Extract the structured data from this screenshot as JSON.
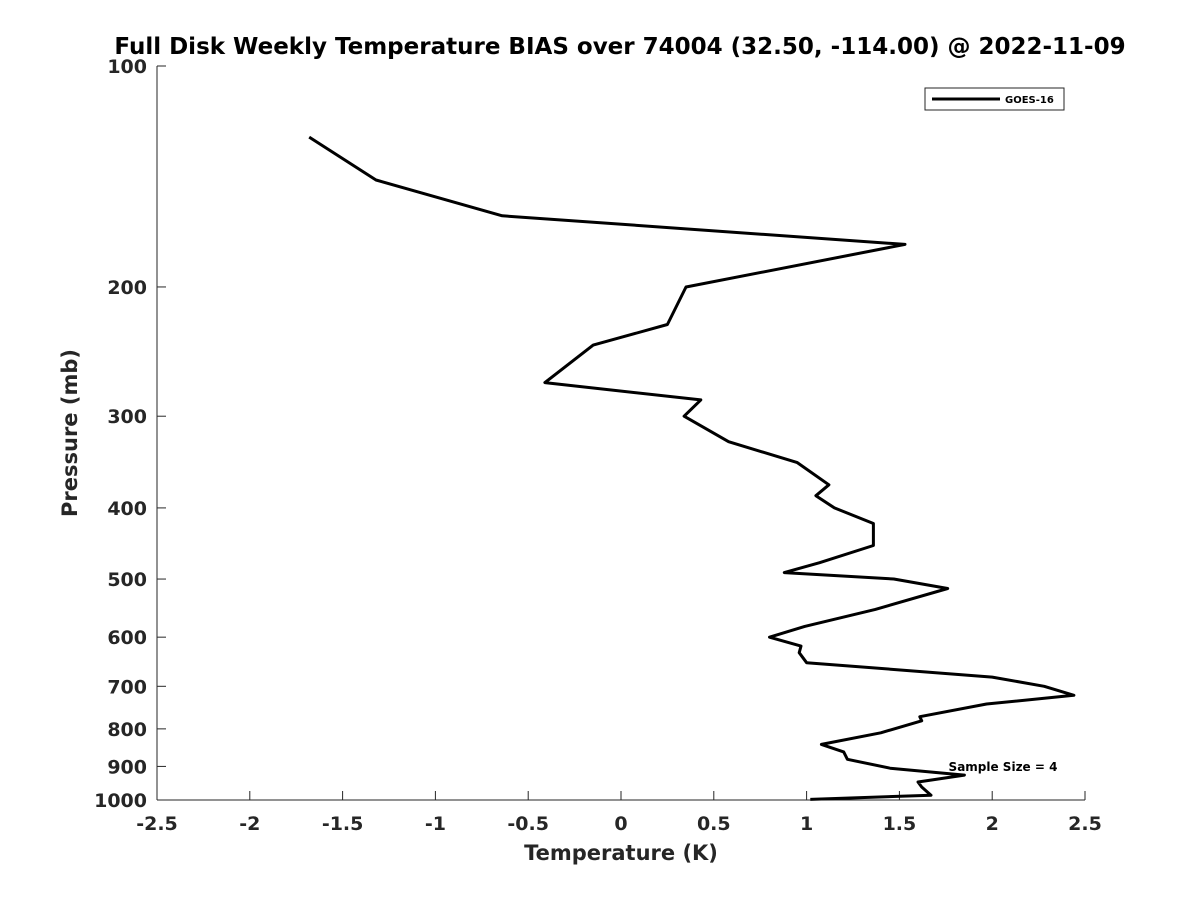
{
  "chart_data": {
    "type": "line",
    "title": "Full Disk Weekly Temperature BIAS over 74004 (32.50, -114.00) @ 2022-11-09",
    "xlabel": "Temperature (K)",
    "ylabel": "Pressure (mb)",
    "xlim": [
      -2.5,
      2.5
    ],
    "ylim": [
      100,
      1000
    ],
    "y_scale": "log",
    "y_reversed": true,
    "grid": false,
    "legend_position": "top-right",
    "x_ticks": [
      "-2.5",
      "-2",
      "-1.5",
      "-1",
      "-0.5",
      "0",
      "0.5",
      "1",
      "1.5",
      "2",
      "2.5"
    ],
    "y_ticks": [
      "100",
      "200",
      "300",
      "400",
      "500",
      "600",
      "700",
      "800",
      "900",
      "1000"
    ],
    "line_color": "#000000",
    "series": [
      {
        "name": "GOES-16",
        "points": [
          {
            "x": -1.68,
            "y": 125
          },
          {
            "x": -1.32,
            "y": 143
          },
          {
            "x": -0.64,
            "y": 160
          },
          {
            "x": 1.53,
            "y": 175
          },
          {
            "x": 0.35,
            "y": 200
          },
          {
            "x": 0.25,
            "y": 225
          },
          {
            "x": -0.15,
            "y": 240
          },
          {
            "x": -0.41,
            "y": 270
          },
          {
            "x": 0.43,
            "y": 285
          },
          {
            "x": 0.34,
            "y": 300
          },
          {
            "x": 0.58,
            "y": 325
          },
          {
            "x": 0.95,
            "y": 347
          },
          {
            "x": 1.12,
            "y": 372
          },
          {
            "x": 1.05,
            "y": 385
          },
          {
            "x": 1.15,
            "y": 400
          },
          {
            "x": 1.36,
            "y": 420
          },
          {
            "x": 1.36,
            "y": 450
          },
          {
            "x": 1.07,
            "y": 475
          },
          {
            "x": 0.88,
            "y": 490
          },
          {
            "x": 1.47,
            "y": 500
          },
          {
            "x": 1.76,
            "y": 515
          },
          {
            "x": 1.37,
            "y": 550
          },
          {
            "x": 0.99,
            "y": 580
          },
          {
            "x": 0.8,
            "y": 600
          },
          {
            "x": 0.97,
            "y": 617
          },
          {
            "x": 0.96,
            "y": 630
          },
          {
            "x": 1.0,
            "y": 650
          },
          {
            "x": 2.0,
            "y": 680
          },
          {
            "x": 2.28,
            "y": 700
          },
          {
            "x": 2.44,
            "y": 720
          },
          {
            "x": 1.97,
            "y": 740
          },
          {
            "x": 1.61,
            "y": 770
          },
          {
            "x": 1.62,
            "y": 780
          },
          {
            "x": 1.4,
            "y": 810
          },
          {
            "x": 1.08,
            "y": 840
          },
          {
            "x": 1.2,
            "y": 860
          },
          {
            "x": 1.22,
            "y": 880
          },
          {
            "x": 1.45,
            "y": 905
          },
          {
            "x": 1.85,
            "y": 925
          },
          {
            "x": 1.6,
            "y": 945
          },
          {
            "x": 1.62,
            "y": 960
          },
          {
            "x": 1.67,
            "y": 985
          },
          {
            "x": 1.02,
            "y": 998
          }
        ]
      }
    ],
    "annotations": [
      "Sample Size = 4"
    ]
  }
}
